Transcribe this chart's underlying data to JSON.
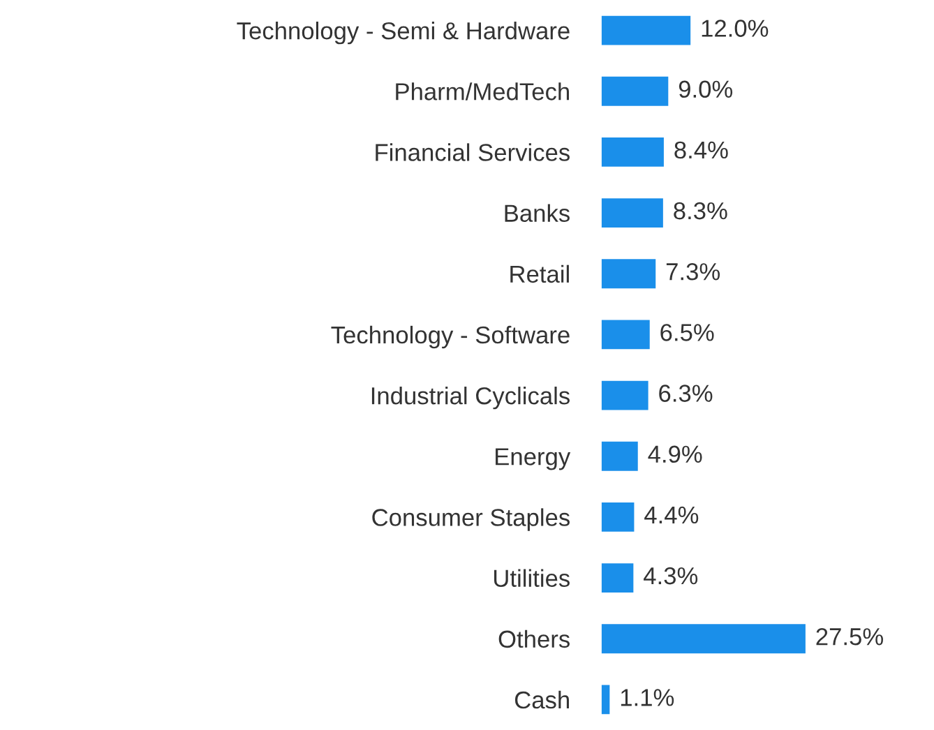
{
  "chart_data": {
    "type": "bar",
    "orientation": "horizontal",
    "categories": [
      "Technology - Semi & Hardware",
      "Pharm/MedTech",
      "Financial Services",
      "Banks",
      "Retail",
      "Technology - Software",
      "Industrial Cyclicals",
      "Energy",
      "Consumer Staples",
      "Utilities",
      "Others",
      "Cash"
    ],
    "values": [
      12.0,
      9.0,
      8.4,
      8.3,
      7.3,
      6.5,
      6.3,
      4.9,
      4.4,
      4.3,
      27.5,
      1.1
    ],
    "value_labels": [
      "12.0%",
      "9.0%",
      "8.4%",
      "8.3%",
      "7.3%",
      "6.5%",
      "6.3%",
      "4.9%",
      "4.4%",
      "4.3%",
      "27.5%",
      "1.1%"
    ],
    "color": "#1a8fea",
    "grid": false,
    "legend": false
  }
}
